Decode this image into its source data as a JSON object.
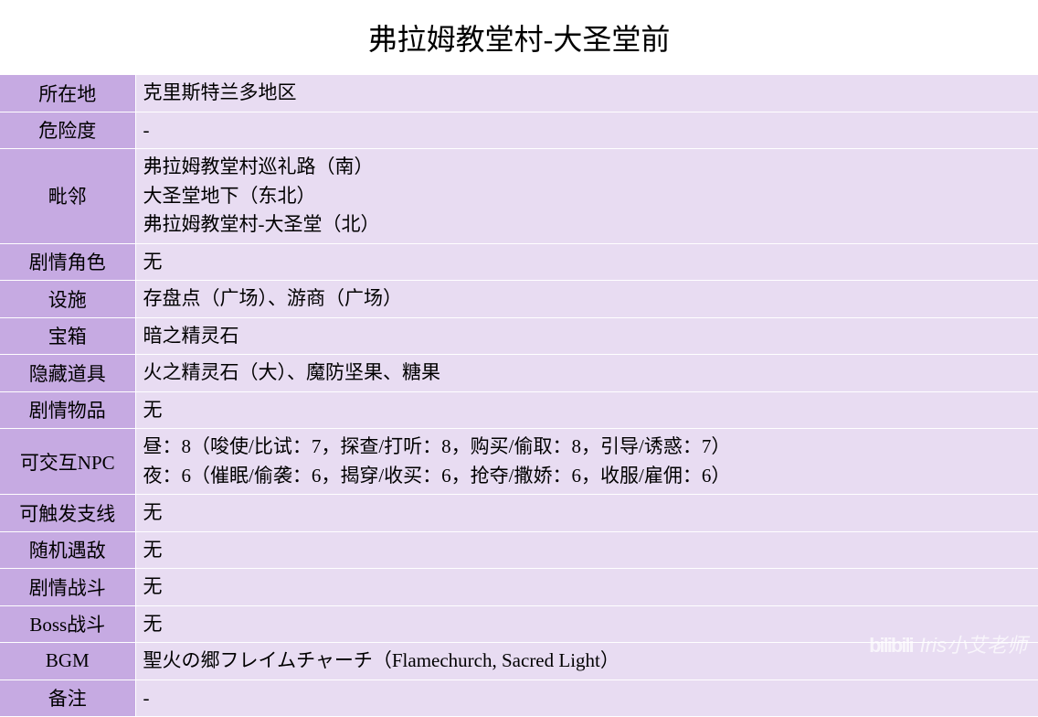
{
  "title": "弗拉姆教堂村-大圣堂前",
  "styling": {
    "title_fontsize": 32,
    "cell_fontsize": 21,
    "label_bg": "#c6aae2",
    "value_bg": "#e8dcf2",
    "border_color": "#ffffff",
    "text_color": "#000000",
    "page_bg": "#ffffff",
    "label_col_width": 148,
    "font_family": "SimSun"
  },
  "rows": [
    {
      "label": "所在地",
      "value": "克里斯特兰多地区"
    },
    {
      "label": "危险度",
      "value": "-"
    },
    {
      "label": "毗邻",
      "value": "弗拉姆教堂村巡礼路（南）\n大圣堂地下（东北）\n弗拉姆教堂村-大圣堂（北）"
    },
    {
      "label": "剧情角色",
      "value": "无"
    },
    {
      "label": "设施",
      "value": "存盘点（广场）、游商（广场）"
    },
    {
      "label": "宝箱",
      "value": "暗之精灵石"
    },
    {
      "label": "隐藏道具",
      "value": "火之精灵石（大）、魔防坚果、糖果"
    },
    {
      "label": "剧情物品",
      "value": "无"
    },
    {
      "label": "可交互NPC",
      "value": "昼：8（唆使/比试：7，探查/打听：8，购买/偷取：8，引导/诱惑：7）\n夜：6（催眠/偷袭：6，揭穿/收买：6，抢夺/撒娇：6，收服/雇佣：6）"
    },
    {
      "label": "可触发支线",
      "value": "无"
    },
    {
      "label": "随机遇敌",
      "value": "无"
    },
    {
      "label": "剧情战斗",
      "value": "无"
    },
    {
      "label": "Boss战斗",
      "value": "无"
    },
    {
      "label": "BGM",
      "value": "聖火の郷フレイムチャーチ（Flamechurch, Sacred Light）"
    },
    {
      "label": "备注",
      "value": "-"
    }
  ],
  "watermark": {
    "logo": "bilibili",
    "text": "Iris小艾老师"
  }
}
